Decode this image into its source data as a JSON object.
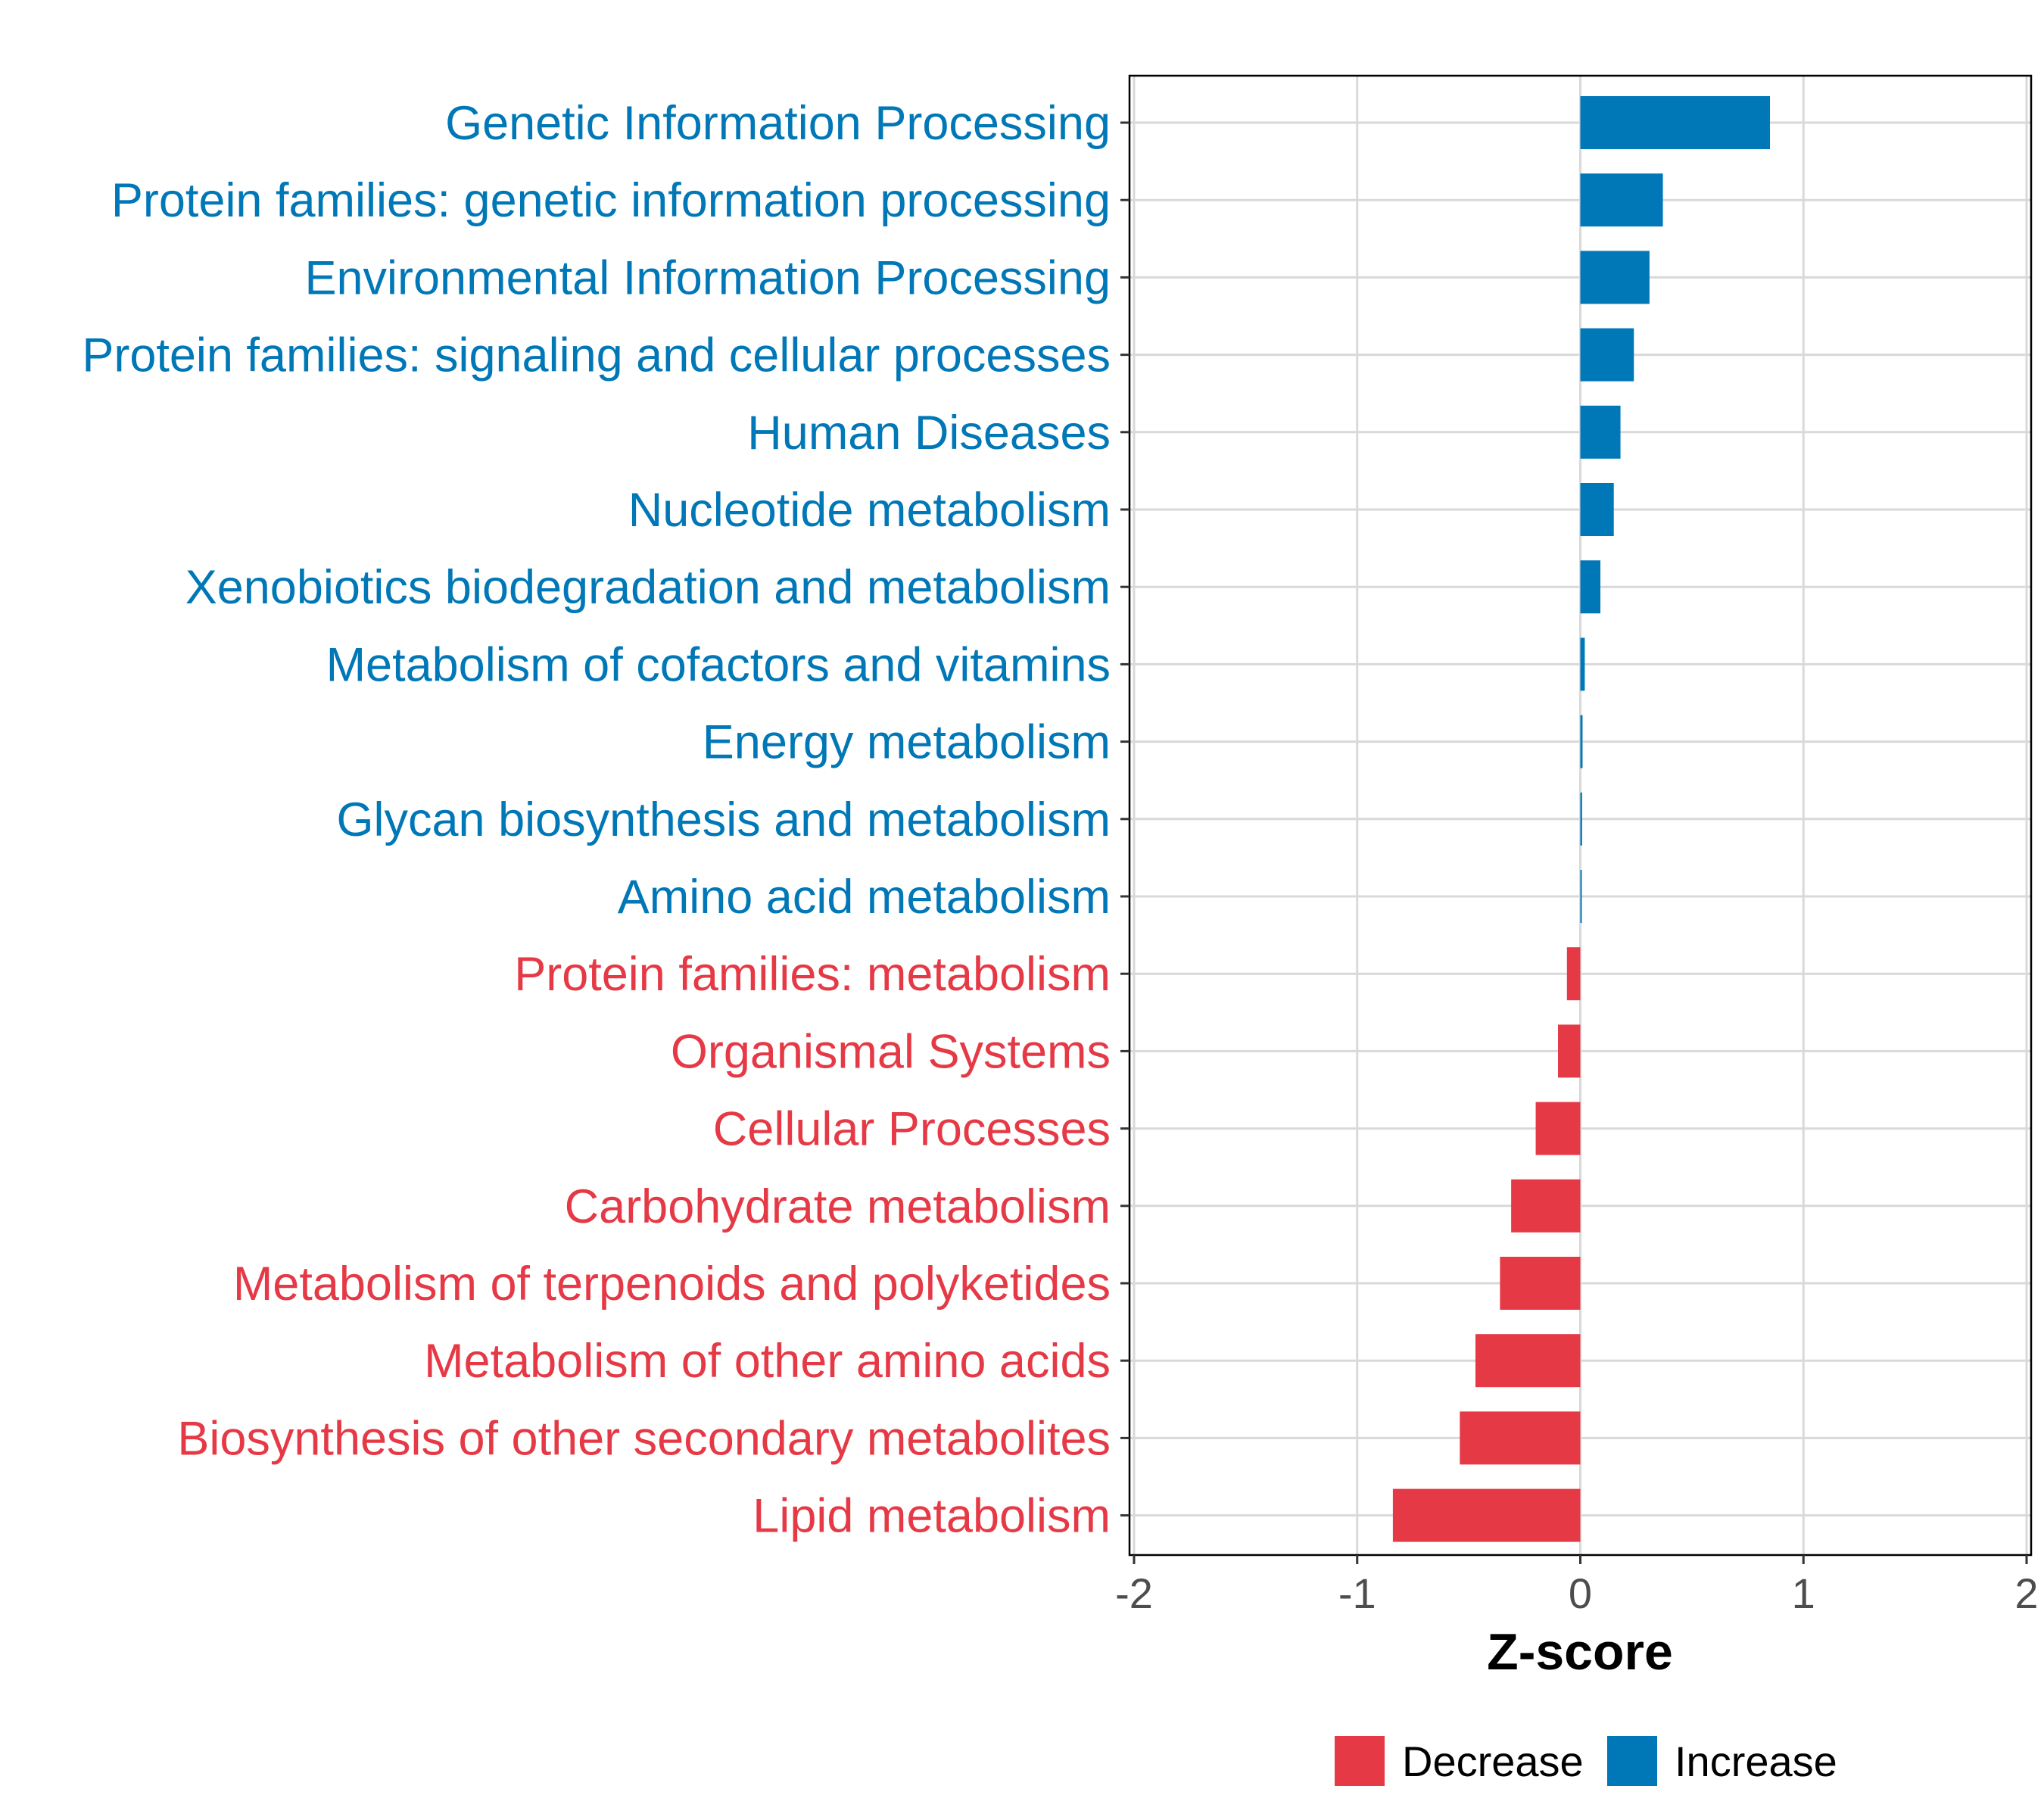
{
  "chart_data": {
    "type": "bar",
    "orientation": "horizontal",
    "title": "",
    "xlabel": "Z-score",
    "ylabel": "",
    "xlim": [
      -2,
      2
    ],
    "xticks": [
      -2,
      -1,
      0,
      1,
      2
    ],
    "xtick_labels": [
      "-2",
      "-1",
      "0",
      "1",
      "2"
    ],
    "grid": true,
    "legend_position": "bottom",
    "legend": [
      {
        "name": "Decrease",
        "color": "#e63946"
      },
      {
        "name": "Increase",
        "color": "#0077b6"
      }
    ],
    "categories": [
      "Genetic Information Processing",
      "Protein families: genetic information processing",
      "Environmental Information Processing",
      "Protein families: signaling and cellular processes",
      "Human Diseases",
      "Nucleotide metabolism",
      "Xenobiotics biodegradation and metabolism",
      "Metabolism of cofactors and vitamins",
      "Energy metabolism",
      "Glycan biosynthesis and metabolism",
      "Amino acid metabolism",
      "Protein families: metabolism",
      "Organismal Systems",
      "Cellular Processes",
      "Carbohydrate metabolism",
      "Metabolism of terpenoids and polyketides",
      "Metabolism of other amino acids",
      "Biosynthesis of other secondary metabolites",
      "Lipid metabolism"
    ],
    "values": [
      0.85,
      0.37,
      0.31,
      0.24,
      0.18,
      0.15,
      0.09,
      0.02,
      0.01,
      0.008,
      0.005,
      -0.06,
      -0.1,
      -0.2,
      -0.31,
      -0.36,
      -0.47,
      -0.54,
      -0.84
    ],
    "groups": [
      "Increase",
      "Increase",
      "Increase",
      "Increase",
      "Increase",
      "Increase",
      "Increase",
      "Increase",
      "Increase",
      "Increase",
      "Increase",
      "Decrease",
      "Decrease",
      "Decrease",
      "Decrease",
      "Decrease",
      "Decrease",
      "Decrease",
      "Decrease"
    ]
  }
}
